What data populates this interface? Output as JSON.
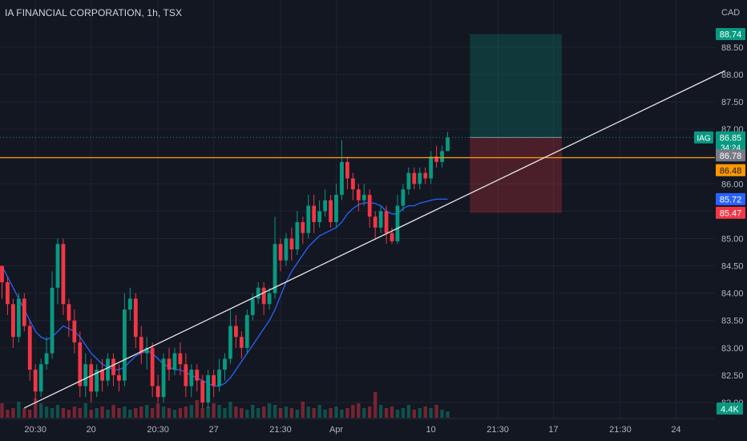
{
  "header": {
    "title": "IA FINANCIAL CORPORATION, 1h, TSX"
  },
  "axis": {
    "currency": "CAD"
  },
  "chart_data": {
    "type": "candlestick",
    "ylim": [
      81.75,
      89.1
    ],
    "y_ticks": [
      "88.50",
      "88.00",
      "87.50",
      "87.00",
      "86.50",
      "86.00",
      "85.50",
      "85.00",
      "84.50",
      "84.00",
      "83.50",
      "83.00",
      "82.50",
      "82.00"
    ],
    "x_ticks": [
      {
        "label": "20:30",
        "bar": 6
      },
      {
        "label": "20",
        "bar": 16
      },
      {
        "label": "20:30",
        "bar": 28
      },
      {
        "label": "27",
        "bar": 38
      },
      {
        "label": "21:30",
        "bar": 50
      },
      {
        "label": "Apr",
        "bar": 60
      },
      {
        "label": "10",
        "bar": 77
      },
      {
        "label": "21:30",
        "bar": 89
      },
      {
        "label": "17",
        "bar": 99
      },
      {
        "label": "21:30",
        "bar": 111
      },
      {
        "label": "24",
        "bar": 121
      }
    ],
    "candles": [
      [
        84.5,
        84.2,
        84.5,
        83.9
      ],
      [
        84.2,
        83.8,
        84.3,
        83.6
      ],
      [
        83.8,
        83.2,
        83.9,
        83.0
      ],
      [
        83.2,
        83.9,
        84.0,
        83.1
      ],
      [
        83.9,
        83.4,
        84.0,
        83.3
      ],
      [
        83.4,
        82.6,
        83.5,
        82.4
      ],
      [
        82.6,
        82.2,
        82.7,
        82.0
      ],
      [
        82.2,
        82.7,
        82.8,
        82.1
      ],
      [
        82.7,
        82.9,
        83.2,
        82.6
      ],
      [
        82.9,
        84.1,
        84.4,
        82.8
      ],
      [
        84.1,
        84.9,
        85.0,
        83.8
      ],
      [
        84.9,
        83.8,
        85.0,
        83.6
      ],
      [
        83.8,
        83.5,
        83.9,
        83.2
      ],
      [
        83.5,
        83.1,
        83.7,
        82.9
      ],
      [
        83.1,
        82.3,
        83.3,
        82.1
      ],
      [
        82.3,
        82.7,
        82.9,
        82.1
      ],
      [
        82.7,
        82.2,
        82.8,
        82.0
      ],
      [
        82.2,
        82.6,
        82.7,
        82.1
      ],
      [
        82.6,
        82.4,
        82.8,
        82.2
      ],
      [
        82.4,
        82.8,
        82.9,
        82.3
      ],
      [
        82.8,
        82.5,
        82.9,
        82.3
      ],
      [
        82.5,
        82.4,
        82.7,
        82.2
      ],
      [
        82.4,
        83.7,
        84.0,
        82.3
      ],
      [
        83.7,
        83.9,
        84.1,
        83.5
      ],
      [
        83.9,
        83.2,
        84.0,
        83.0
      ],
      [
        83.2,
        82.9,
        83.4,
        82.7
      ],
      [
        82.9,
        83.0,
        83.2,
        82.6
      ],
      [
        83.0,
        82.3,
        83.1,
        82.1
      ],
      [
        82.3,
        82.1,
        82.5,
        82.0
      ],
      [
        82.1,
        82.8,
        82.9,
        82.0
      ],
      [
        82.8,
        82.6,
        83.0,
        82.4
      ],
      [
        82.6,
        82.9,
        83.0,
        82.5
      ],
      [
        82.9,
        82.7,
        83.1,
        82.5
      ],
      [
        82.7,
        82.3,
        82.9,
        82.1
      ],
      [
        82.3,
        82.6,
        82.7,
        82.1
      ],
      [
        82.6,
        82.4,
        82.7,
        82.2
      ],
      [
        82.4,
        82.0,
        82.5,
        81.9
      ],
      [
        82.0,
        82.5,
        82.6,
        81.9
      ],
      [
        82.5,
        82.3,
        82.6,
        82.1
      ],
      [
        82.3,
        82.6,
        82.8,
        82.2
      ],
      [
        82.6,
        82.8,
        82.9,
        82.4
      ],
      [
        82.8,
        83.4,
        83.7,
        82.7
      ],
      [
        83.4,
        83.2,
        83.6,
        83.0
      ],
      [
        83.2,
        83.0,
        83.3,
        82.8
      ],
      [
        83.0,
        83.6,
        83.7,
        82.9
      ],
      [
        83.6,
        83.9,
        84.0,
        83.5
      ],
      [
        83.9,
        84.1,
        84.2,
        83.8
      ],
      [
        84.1,
        83.8,
        84.2,
        83.6
      ],
      [
        83.8,
        84.0,
        84.1,
        83.7
      ],
      [
        84.0,
        84.9,
        85.4,
        83.9
      ],
      [
        84.9,
        84.6,
        85.0,
        84.4
      ],
      [
        84.6,
        85.0,
        85.1,
        84.5
      ],
      [
        85.0,
        84.8,
        85.2,
        84.6
      ],
      [
        84.8,
        85.3,
        85.5,
        84.7
      ],
      [
        85.3,
        85.1,
        85.4,
        84.9
      ],
      [
        85.1,
        85.6,
        85.8,
        85.0
      ],
      [
        85.6,
        85.3,
        85.8,
        85.1
      ],
      [
        85.3,
        85.5,
        85.7,
        85.2
      ],
      [
        85.5,
        85.7,
        85.9,
        85.4
      ],
      [
        85.7,
        85.3,
        85.8,
        85.2
      ],
      [
        85.3,
        85.8,
        86.0,
        85.2
      ],
      [
        85.8,
        86.4,
        86.8,
        85.7
      ],
      [
        86.4,
        86.1,
        86.5,
        85.9
      ],
      [
        86.1,
        85.9,
        86.2,
        85.7
      ],
      [
        85.9,
        85.7,
        86.0,
        85.5
      ],
      [
        85.7,
        85.8,
        86.0,
        85.6
      ],
      [
        85.8,
        85.4,
        85.9,
        85.2
      ],
      [
        85.4,
        85.2,
        85.5,
        85.0
      ],
      [
        85.2,
        85.5,
        85.6,
        85.1
      ],
      [
        85.5,
        85.1,
        85.6,
        84.9
      ],
      [
        85.1,
        84.95,
        85.2,
        84.9
      ],
      [
        84.95,
        85.6,
        85.8,
        84.9
      ],
      [
        85.6,
        85.9,
        86.0,
        85.5
      ],
      [
        85.9,
        86.2,
        86.3,
        85.8
      ],
      [
        86.2,
        86.0,
        86.3,
        85.9
      ],
      [
        86.0,
        86.2,
        86.3,
        85.9
      ],
      [
        86.2,
        86.1,
        86.3,
        86.0
      ],
      [
        86.1,
        86.5,
        86.6,
        86.0
      ],
      [
        86.5,
        86.4,
        86.7,
        86.3
      ],
      [
        86.4,
        86.6,
        86.7,
        86.3
      ],
      [
        86.6,
        86.85,
        86.95,
        86.6
      ]
    ],
    "ma": [
      84.5,
      84.3,
      84.1,
      83.9,
      83.7,
      83.5,
      83.3,
      83.2,
      83.15,
      83.2,
      83.3,
      83.4,
      83.35,
      83.3,
      83.2,
      83.05,
      82.9,
      82.8,
      82.7,
      82.65,
      82.6,
      82.6,
      82.65,
      82.75,
      82.85,
      82.9,
      82.95,
      82.9,
      82.8,
      82.7,
      82.65,
      82.6,
      82.6,
      82.55,
      82.5,
      82.45,
      82.4,
      82.35,
      82.3,
      82.3,
      82.35,
      82.45,
      82.6,
      82.75,
      82.9,
      83.05,
      83.2,
      83.35,
      83.5,
      83.7,
      83.95,
      84.2,
      84.4,
      84.55,
      84.7,
      84.85,
      84.95,
      85.05,
      85.1,
      85.15,
      85.2,
      85.3,
      85.45,
      85.55,
      85.62,
      85.65,
      85.66,
      85.64,
      85.6,
      85.5,
      85.45,
      85.45,
      85.55,
      85.6,
      85.6,
      85.65,
      85.67,
      85.7,
      85.72,
      85.72,
      85.72
    ],
    "volume": [
      0.9,
      0.5,
      0.6,
      1.0,
      0.6,
      0.5,
      1.2,
      0.9,
      0.7,
      0.6,
      0.8,
      0.6,
      0.5,
      0.7,
      0.6,
      0.9,
      0.5,
      0.6,
      0.7,
      0.5,
      0.8,
      0.6,
      0.7,
      0.5,
      0.6,
      0.7,
      0.8,
      0.6,
      0.9,
      0.7,
      0.6,
      0.5,
      0.6,
      0.7,
      0.8,
      1.1,
      0.6,
      0.7,
      0.9,
      0.8,
      0.6,
      1.0,
      0.7,
      0.6,
      0.5,
      0.8,
      0.6,
      0.7,
      0.9,
      0.8,
      0.6,
      0.7,
      0.6,
      0.5,
      1.0,
      0.7,
      0.6,
      0.8,
      0.5,
      0.6,
      0.7,
      0.5,
      0.6,
      0.8,
      0.9,
      0.6,
      0.7,
      1.6,
      0.8,
      0.6,
      0.7,
      0.5,
      0.6,
      0.8,
      0.5,
      0.6,
      0.7,
      0.6,
      0.8,
      0.5,
      0.4
    ],
    "trendline": {
      "from_bar": 4,
      "from_price": 81.9,
      "to_bar": 129.8,
      "to_price": 88.07
    },
    "horizontal_line": {
      "price": 86.48,
      "color": "#ff9800"
    },
    "last_price_line": {
      "price": 86.85
    },
    "position": {
      "from_bar": 84,
      "to_bar": 100.5,
      "entry": 86.85,
      "target": 88.74,
      "stop": 85.47
    },
    "price_labels": [
      {
        "text": "88.74",
        "price": 88.74,
        "bg": "#089981",
        "fg": "#ffffff"
      },
      {
        "text": "86.85",
        "price": 86.85,
        "bg": "#089981",
        "fg": "#ffffff",
        "extra": "34:24",
        "tag": "IAG"
      },
      {
        "text": "86.78",
        "price": 86.52,
        "bg": "#787b86",
        "fg": "#ffffff"
      },
      {
        "text": "86.48",
        "price": 86.25,
        "bg": "#ff9800",
        "fg": "#131722"
      },
      {
        "text": "85.72",
        "price": 85.72,
        "bg": "#2962ff",
        "fg": "#ffffff"
      },
      {
        "text": "85.47",
        "price": 85.47,
        "bg": "#f23645",
        "fg": "#ffffff"
      }
    ],
    "volume_label": "4.4K",
    "colors": {
      "up": "#089981",
      "down": "#f23645",
      "ma": "#2962ff",
      "trend": "#e8e8e8",
      "bg": "#131722",
      "grid": "#1f2330",
      "text": "#b2b5be"
    }
  }
}
